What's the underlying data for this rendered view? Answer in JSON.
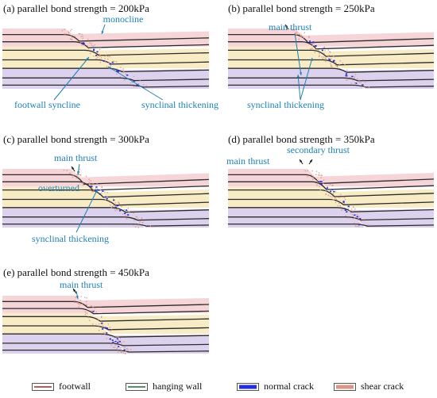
{
  "colors": {
    "pink": "#f6d5d8",
    "yellow": "#f7ecc6",
    "purple": "#ddd2ee",
    "bed": "#2b2b2b",
    "annotation": "#1e7fb4",
    "footwall": "#9b2a1e",
    "hanging_wall": "#1f6b3a",
    "normal_crack": "#2330d8",
    "shear_crack": "#d99586"
  },
  "panels": [
    {
      "title": "(a) parallel bond strength = 200kPa",
      "annotations": [
        {
          "id": "monocline",
          "text": "monocline"
        },
        {
          "id": "footwall-syncline",
          "text": "footwall syncline"
        },
        {
          "id": "synclinal-thickening",
          "text": "synclinal thickening"
        }
      ]
    },
    {
      "title": "(b) parallel bond strength = 250kPa",
      "annotations": [
        {
          "id": "main-thrust",
          "text": "main thrust"
        },
        {
          "id": "synclinal-thickening",
          "text": "synclinal thickening"
        }
      ]
    },
    {
      "title": "(c) parallel bond strength = 300kPa",
      "annotations": [
        {
          "id": "main-thrust",
          "text": "main thrust"
        },
        {
          "id": "overturned",
          "text": "overturned"
        },
        {
          "id": "synclinal-thickening",
          "text": "synclinal thickening"
        }
      ]
    },
    {
      "title": "(d) parallel bond strength = 350kPa",
      "annotations": [
        {
          "id": "secondary-thrust",
          "text": "secondary thrust"
        },
        {
          "id": "main-thrust",
          "text": "main thrust"
        }
      ]
    },
    {
      "title": "(e) parallel bond strength = 450kPa",
      "annotations": [
        {
          "id": "main-thrust",
          "text": "main thrust"
        }
      ]
    }
  ],
  "legend": [
    {
      "label": "footwall",
      "swatch": "line",
      "color": "#9b2a1e"
    },
    {
      "label": "hanging wall",
      "swatch": "line",
      "color": "#1f6b3a"
    },
    {
      "label": "normal crack",
      "swatch": "box",
      "color": "#2330d8"
    },
    {
      "label": "shear crack",
      "swatch": "box",
      "color": "#d99586"
    }
  ]
}
